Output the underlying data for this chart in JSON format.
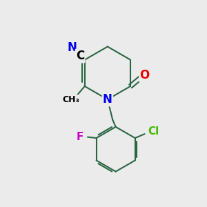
{
  "bg_color": "#ebebeb",
  "atom_colors": {
    "N": "#0000ee",
    "O": "#ee0000",
    "Cl": "#44bb00",
    "F": "#cc00cc",
    "C": "#000000"
  },
  "bond_color": "#2a6644",
  "bond_width": 1.5,
  "label_fontsize": 11
}
